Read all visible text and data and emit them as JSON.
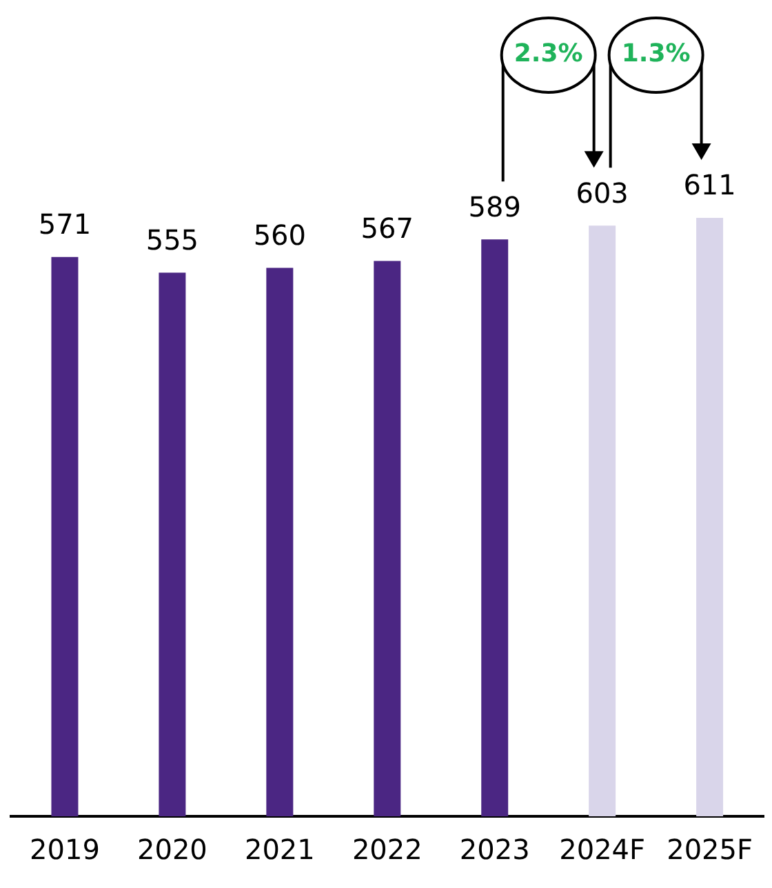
{
  "chart_data": {
    "type": "bar",
    "categories": [
      "2019",
      "2020",
      "2021",
      "2022",
      "2023",
      "2024F",
      "2025F"
    ],
    "values": [
      571,
      555,
      560,
      567,
      589,
      603,
      611
    ],
    "colors": [
      "#4b2683",
      "#4b2683",
      "#4b2683",
      "#4b2683",
      "#4b2683",
      "#d9d5ea",
      "#d9d5ea"
    ],
    "data_labels": true,
    "grid": false,
    "legend": false,
    "annotations": [
      "2.3%",
      "1.3%"
    ]
  }
}
